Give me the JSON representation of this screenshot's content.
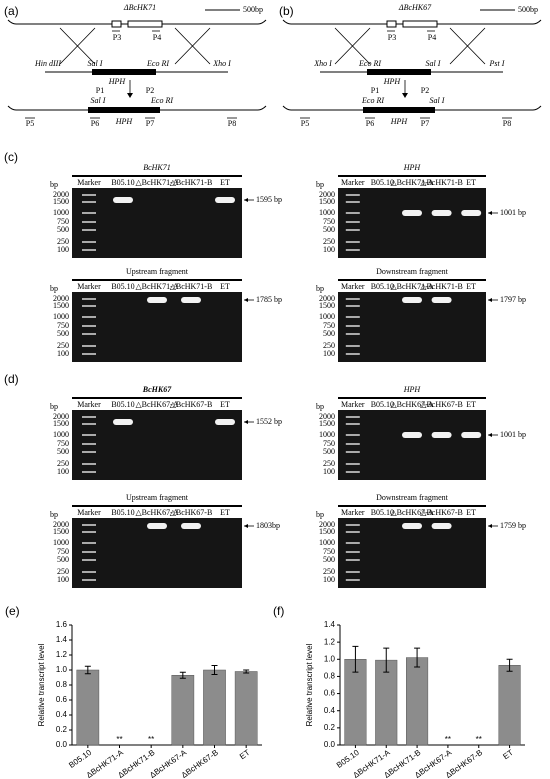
{
  "diagrams": [
    {
      "label": "(a)",
      "gene": "ΔBcHK71",
      "scale": "500bp",
      "primers": [
        "P3",
        "P4",
        "P1",
        "P2",
        "P5",
        "P6",
        "P7",
        "P8"
      ],
      "sites": [
        "Hin dIII",
        "Sal I",
        "Eco RI",
        "Xho I",
        "Sal I",
        "Eco RI"
      ],
      "hph": [
        "HPH",
        "HPH"
      ]
    },
    {
      "label": "(b)",
      "gene": "ΔBcHK67",
      "scale": "500bp",
      "primers": [
        "P3",
        "P4",
        "P1",
        "P2",
        "P5",
        "P6",
        "P7",
        "P8"
      ],
      "sites": [
        "Xho I",
        "Eco RI",
        "Sal I",
        "Pst I",
        "Eco RI",
        "Sal I"
      ],
      "hph": [
        "HPH",
        "HPH"
      ]
    }
  ],
  "ladder": {
    "unit": "bp",
    "sizes": [
      "2000",
      "1500",
      "1000",
      "750",
      "500",
      "250",
      "100"
    ]
  },
  "gel_panels": [
    {
      "label": "(c)",
      "gels": [
        {
          "title": "BcHK71",
          "lanes": [
            "Marker",
            "B05.10",
            "△BcHK71-A",
            "△BcHK71-B",
            "ET"
          ],
          "band": "1595 bp"
        },
        {
          "title": "HPH",
          "lanes": [
            "Marker",
            "B05.10",
            "△BcHK71-A",
            "△BcHK71-B",
            "ET"
          ],
          "band": "1001 bp"
        },
        {
          "title": "Upstream fragment",
          "lanes": [
            "Marker",
            "B05.10",
            "△BcHK71-A",
            "△BcHK71-B",
            "ET"
          ],
          "band": "1785 bp"
        },
        {
          "title": "Downstream fragment",
          "lanes": [
            "Marker",
            "B05.10",
            "△BcHK71-A",
            "△BcHK71-B",
            "ET"
          ],
          "band": "1797 bp"
        }
      ]
    },
    {
      "label": "(d)",
      "gels": [
        {
          "title": "BcHK67",
          "lanes": [
            "Marker",
            "B05.10",
            "△BcHK67-A",
            "△BcHK67-B",
            "ET"
          ],
          "band": "1552 bp"
        },
        {
          "title": "HPH",
          "lanes": [
            "Marker",
            "B05.10",
            "△BcHK67-A",
            "△BcHK67-B",
            "ET"
          ],
          "band": "1001 bp"
        },
        {
          "title": "Upstream fragment",
          "lanes": [
            "Marker",
            "B05.10",
            "△BcHK67-A",
            "△BcHK67-B",
            "ET"
          ],
          "band": "1803bp"
        },
        {
          "title": "Downstream fragment",
          "lanes": [
            "Marker",
            "B05.10",
            "△BcHK67-A",
            "△BcHK67-B",
            "ET"
          ],
          "band": "1759 bp"
        }
      ]
    }
  ],
  "chart_data": [
    {
      "type": "bar",
      "label": "(e)",
      "y_label": "Relative transcript level",
      "categories": [
        "B05.10",
        "ΔBcHK71-A",
        "ΔBcHK71-B",
        "ΔBcHK67-A",
        "ΔBcHK67-B",
        "ET"
      ],
      "values": [
        1.0,
        0,
        0,
        0.93,
        1.0,
        0.98
      ],
      "errors": [
        0.05,
        null,
        null,
        0.04,
        0.06,
        0.02
      ],
      "significance": [
        null,
        "**",
        "**",
        null,
        null,
        null
      ],
      "color": "#8c8c8c",
      "ylim": [
        0,
        1.6
      ],
      "yticks": [
        {
          "value": 0,
          "label": "0.0"
        },
        {
          "value": 0.2,
          "label": "0.2"
        },
        {
          "value": 0.4,
          "label": "0.4"
        },
        {
          "value": 0.6,
          "label": "0.6"
        },
        {
          "value": 0.8,
          "label": "0.8"
        },
        {
          "value": 1.0,
          "label": "1.0"
        },
        {
          "value": 1.2,
          "label": "1.2"
        },
        {
          "value": 1.4,
          "label": "1.4"
        },
        {
          "value": 1.6,
          "label": "1.6"
        }
      ]
    },
    {
      "type": "bar",
      "label": "(f)",
      "y_label": "Relative transcript level",
      "categories": [
        "B05.10",
        "ΔBcHK71-A",
        "ΔBcHK71-B",
        "ΔBcHK67-A",
        "ΔBcHK67-B",
        "ET"
      ],
      "values": [
        1.0,
        0.99,
        1.02,
        0,
        0,
        0.93
      ],
      "errors": [
        0.15,
        0.14,
        0.11,
        null,
        null,
        0.07
      ],
      "significance": [
        null,
        null,
        null,
        "**",
        "**",
        null
      ],
      "color": "#8c8c8c",
      "ylim": [
        0,
        1.4
      ],
      "yticks": [
        {
          "value": 0,
          "label": "0.0"
        },
        {
          "value": 0.2,
          "label": "0.2"
        },
        {
          "value": 0.4,
          "label": "0.4"
        },
        {
          "value": 0.6,
          "label": "0.6"
        },
        {
          "value": 0.8,
          "label": "0.8"
        },
        {
          "value": 1.0,
          "label": "1.0"
        },
        {
          "value": 1.2,
          "label": "1.2"
        },
        {
          "value": 1.4,
          "label": "1.4"
        }
      ]
    }
  ]
}
